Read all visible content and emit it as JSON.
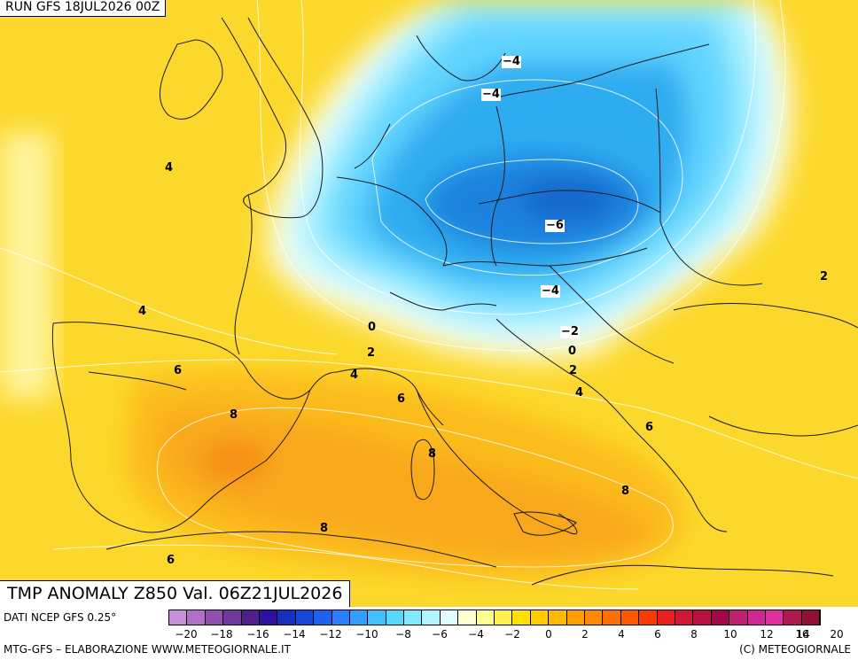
{
  "header": {
    "run_label": "RUN GFS 18JUL2026 00Z"
  },
  "map": {
    "title": "TMP ANOMALY Z850 Val. 06Z21JUL2026",
    "labels": [
      {
        "text": "−4",
        "bg": true
      },
      {
        "text": "−4",
        "bg": true
      },
      {
        "text": "4",
        "bg": false
      },
      {
        "text": "−6",
        "bg": true
      },
      {
        "text": "2",
        "bg": false
      },
      {
        "text": "−4",
        "bg": true
      },
      {
        "text": "4",
        "bg": false
      },
      {
        "text": "0",
        "bg": false
      },
      {
        "text": "2",
        "bg": false
      },
      {
        "text": "−2",
        "bg": true
      },
      {
        "text": "0",
        "bg": false
      },
      {
        "text": "2",
        "bg": false
      },
      {
        "text": "6",
        "bg": false
      },
      {
        "text": "4",
        "bg": false
      },
      {
        "text": "6",
        "bg": false
      },
      {
        "text": "4",
        "bg": false
      },
      {
        "text": "8",
        "bg": false
      },
      {
        "text": "6",
        "bg": false
      },
      {
        "text": "8",
        "bg": false
      },
      {
        "text": "8",
        "bg": false
      },
      {
        "text": "8",
        "bg": false
      },
      {
        "text": "6",
        "bg": false
      }
    ]
  },
  "footer": {
    "data_source": "DATI NCEP GFS 0.25°",
    "credits": "MTG-GFS – ELABORAZIONE WWW.METEOGIORNALE.IT",
    "copyright": "(C) METEOGIORNALE"
  },
  "colorbar": {
    "colors": [
      "#c890d8",
      "#b070c8",
      "#9050b0",
      "#70389a",
      "#50208a",
      "#3010a0",
      "#1830c0",
      "#1848d8",
      "#2060f0",
      "#2880ff",
      "#30a0ff",
      "#40c0ff",
      "#58d8ff",
      "#80e8ff",
      "#b0f4ff",
      "#e0fcff",
      "#ffffd0",
      "#ffff90",
      "#fff050",
      "#ffe000",
      "#ffcc00",
      "#ffb800",
      "#ffa000",
      "#ff8800",
      "#ff7000",
      "#ff5800",
      "#f83c00",
      "#e82020",
      "#d01838",
      "#b81040",
      "#a00848",
      "#c02070",
      "#d02890",
      "#e030a0",
      "#b01850",
      "#901038"
    ],
    "ticks": [
      "−20",
      "−18",
      "−16",
      "−14",
      "−12",
      "−10",
      "−8",
      "−6",
      "−4",
      "−2",
      "0",
      "2",
      "4",
      "6",
      "8",
      "10",
      "12",
      "14",
      "16",
      "20"
    ]
  }
}
